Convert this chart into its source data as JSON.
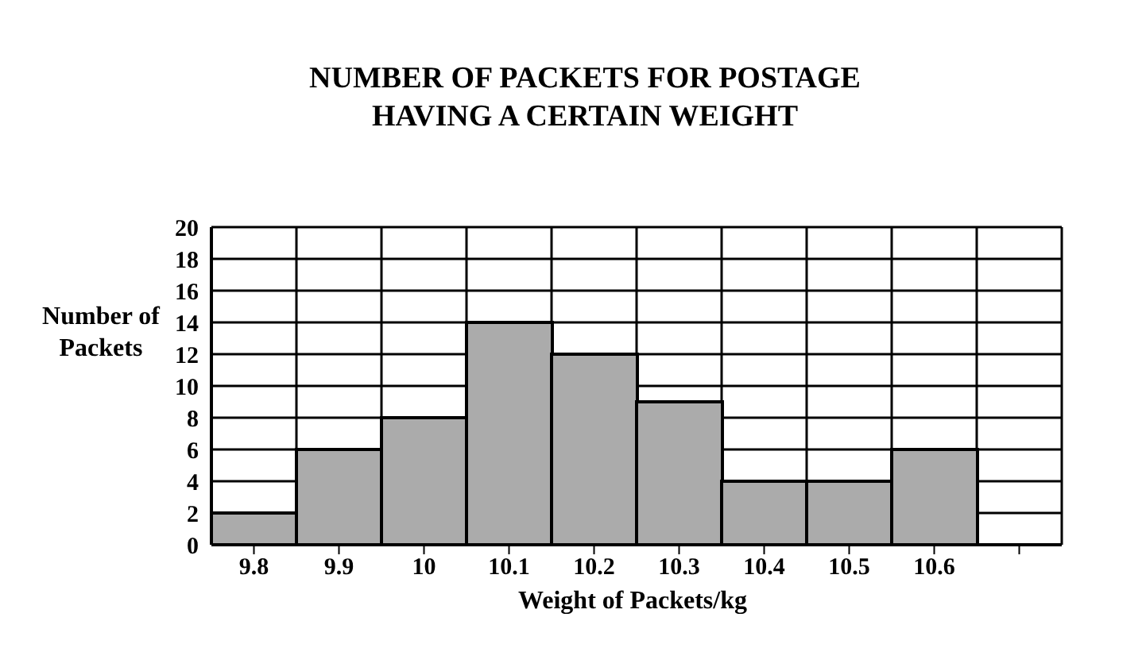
{
  "chart_data": {
    "type": "bar",
    "title": "NUMBER OF PACKETS FOR POSTAGE HAVING A CERTAIN WEIGHT",
    "xlabel": "Weight of Packets/kg",
    "ylabel": "Number of Packets",
    "categories": [
      "9.8",
      "9.9",
      "10",
      "10.1",
      "10.2",
      "10.3",
      "10.4",
      "10.5",
      "10.6",
      null
    ],
    "values": [
      2,
      6,
      8,
      14,
      12,
      9,
      4,
      4,
      6,
      null
    ],
    "color": "#ababab",
    "ylim": [
      0,
      20
    ],
    "yticks": [
      0,
      2,
      4,
      6,
      8,
      10,
      12,
      14,
      16,
      18,
      20
    ],
    "grid": true
  }
}
